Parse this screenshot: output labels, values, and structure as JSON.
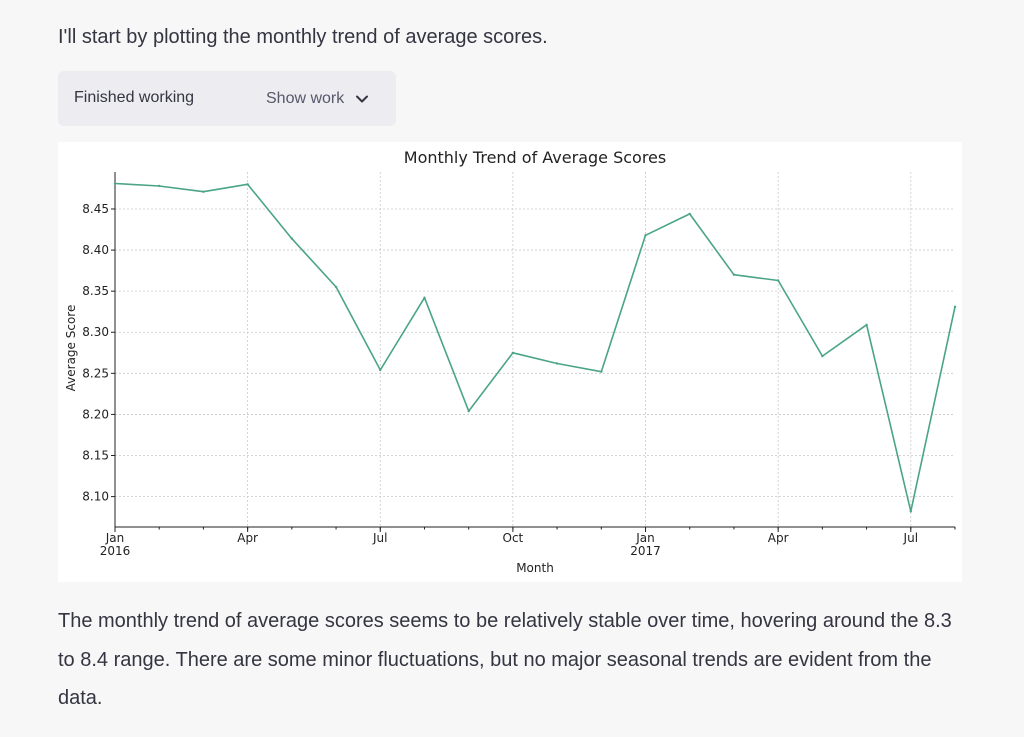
{
  "message": {
    "intro": "I'll start by plotting the monthly trend of average scores.",
    "summary": "The monthly trend of average scores seems to be relatively stable over time, hovering around the 8.3 to 8.4 range. There are some minor fluctuations, but no major seasonal trends are evident from the data."
  },
  "work_panel": {
    "status": "Finished working",
    "toggle_label": "Show work",
    "toggle_icon": "chevron-down-icon"
  },
  "colors": {
    "line": "#4aa487",
    "background": "#f7f7f8",
    "panel": "#ececf1"
  },
  "chart_data": {
    "type": "line",
    "title": "Monthly Trend of Average Scores",
    "xlabel": "Month",
    "ylabel": "Average Score",
    "x": [
      "2016-01",
      "2016-02",
      "2016-03",
      "2016-04",
      "2016-05",
      "2016-06",
      "2016-07",
      "2016-08",
      "2016-09",
      "2016-10",
      "2016-11",
      "2016-12",
      "2017-01",
      "2017-02",
      "2017-03",
      "2017-04",
      "2017-05",
      "2017-06",
      "2017-07",
      "2017-08"
    ],
    "series": [
      {
        "values": [
          8.481,
          8.478,
          8.471,
          8.48,
          8.414,
          8.355,
          8.254,
          8.342,
          8.204,
          8.275,
          8.262,
          8.252,
          8.418,
          8.444,
          8.37,
          8.363,
          8.271,
          8.309,
          8.082,
          8.331
        ]
      }
    ],
    "ylim": [
      8.063,
      8.495
    ],
    "yticks": [
      "8.10",
      "8.15",
      "8.20",
      "8.25",
      "8.30",
      "8.35",
      "8.40",
      "8.45"
    ],
    "xticks": [
      {
        "month": "2016-01",
        "label": "Jan",
        "sublabel": "2016"
      },
      {
        "month": "2016-04",
        "label": "Apr"
      },
      {
        "month": "2016-07",
        "label": "Jul"
      },
      {
        "month": "2016-10",
        "label": "Oct"
      },
      {
        "month": "2017-01",
        "label": "Jan",
        "sublabel": "2017"
      },
      {
        "month": "2017-04",
        "label": "Apr"
      },
      {
        "month": "2017-07",
        "label": "Jul"
      }
    ],
    "grid": true
  }
}
